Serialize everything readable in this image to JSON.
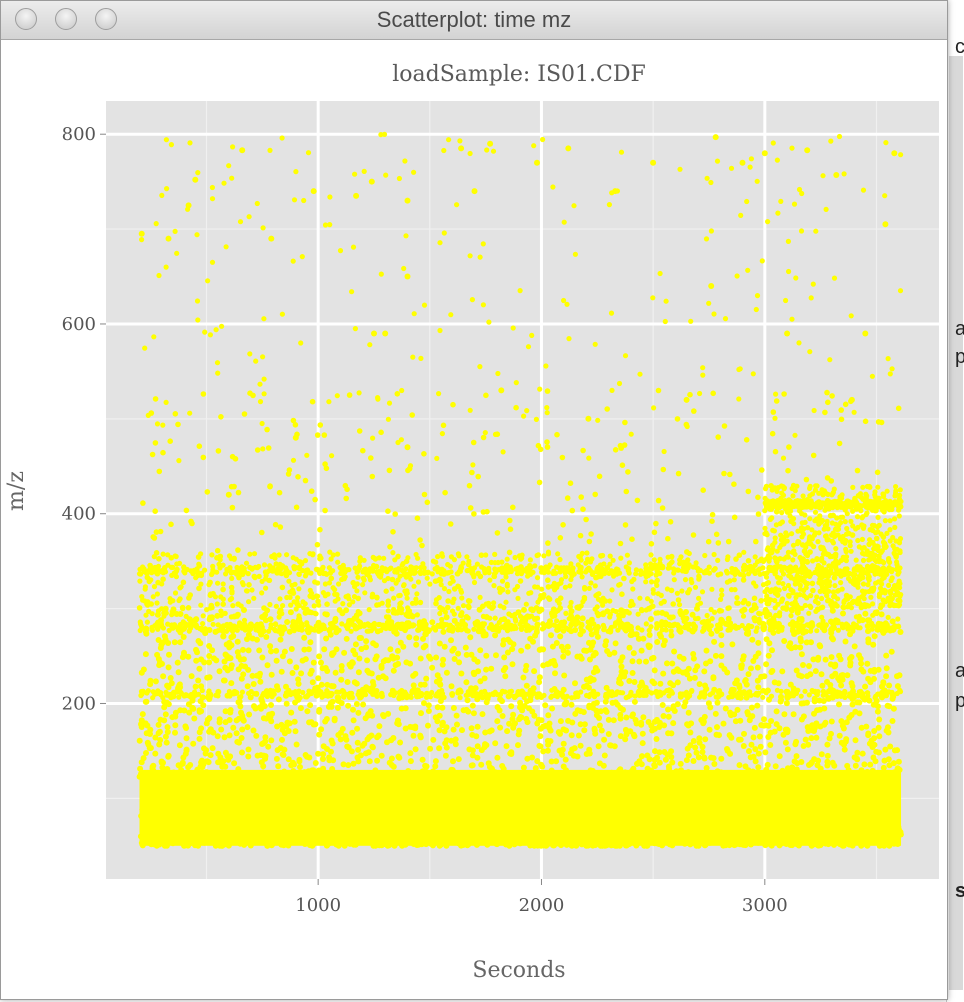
{
  "window": {
    "title": "Scatterplot: time mz",
    "buttons": [
      "close",
      "minimize",
      "zoom"
    ]
  },
  "background_app": {
    "glyphs": [
      "c",
      "a",
      "p",
      "a",
      "p",
      "s"
    ]
  },
  "chart_data": {
    "type": "scatter",
    "title": "loadSample:  IS01.CDF",
    "xlabel": "Seconds",
    "ylabel": "m/z",
    "xlim": [
      50,
      3780
    ],
    "ylim": [
      15,
      835
    ],
    "xticks": [
      1000,
      2000,
      3000
    ],
    "yticks": [
      200,
      400,
      600,
      800
    ],
    "xtick_labels": [
      "1000",
      "2000",
      "3000"
    ],
    "ytick_labels": [
      "200",
      "400",
      "600",
      "800"
    ],
    "grid": true,
    "x_range": [
      200,
      3610
    ],
    "y_range": [
      50,
      800
    ],
    "color": "#ffff00",
    "background": "#e3e3e3",
    "dense_bands_mz": [
      210,
      280,
      340,
      410
    ],
    "high_mz_density_start_seconds": 3000,
    "sample_points": [
      [
        210,
        695
      ],
      [
        330,
        690
      ],
      [
        420,
        725
      ],
      [
        450,
        752
      ],
      [
        660,
        783
      ],
      [
        790,
        690
      ],
      [
        980,
        740
      ],
      [
        1170,
        735
      ],
      [
        1240,
        750
      ],
      [
        1400,
        650
      ],
      [
        1400,
        730
      ],
      [
        1640,
        785
      ],
      [
        1700,
        740
      ],
      [
        1770,
        790
      ],
      [
        1980,
        770
      ],
      [
        2120,
        785
      ],
      [
        2330,
        740
      ],
      [
        2500,
        770
      ],
      [
        2780,
        797
      ],
      [
        2900,
        770
      ],
      [
        3000,
        780
      ],
      [
        3190,
        783
      ],
      [
        3320,
        757
      ],
      [
        3580,
        780
      ],
      [
        3540,
        705
      ],
      [
        1250,
        590
      ],
      [
        1300,
        590
      ],
      [
        2210,
        500
      ],
      [
        2760,
        640
      ],
      [
        3390,
        520
      ],
      [
        3450,
        590
      ],
      [
        600,
        420
      ],
      [
        900,
        480
      ],
      [
        1400,
        470
      ],
      [
        1820,
        530
      ],
      [
        2650,
        520
      ],
      [
        3100,
        590
      ]
    ]
  }
}
